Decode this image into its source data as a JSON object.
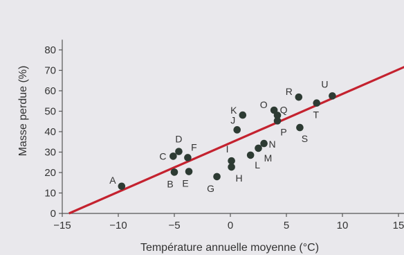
{
  "chart_data": {
    "type": "scatter",
    "xlabel": "Température annuelle moyenne (°C)",
    "ylabel": "Masse perdue (%)",
    "xlim": [
      -15,
      16
    ],
    "ylim": [
      0,
      85
    ],
    "x_ticks": [
      -15,
      -10,
      -5,
      0,
      5,
      10,
      15
    ],
    "x_tick_labels": [
      "−15",
      "−10",
      "−5",
      "0",
      "5",
      "10",
      "15"
    ],
    "y_ticks": [
      0,
      10,
      20,
      30,
      40,
      50,
      60,
      70,
      80
    ],
    "y_tick_labels": [
      "0",
      "10",
      "20",
      "30",
      "40",
      "50",
      "60",
      "70",
      "80"
    ],
    "grid": false,
    "points": [
      {
        "label": "A",
        "x": -9.7,
        "y": 13.3
      },
      {
        "label": "B",
        "x": -5.0,
        "y": 20.2
      },
      {
        "label": "C",
        "x": -5.1,
        "y": 28.0
      },
      {
        "label": "D",
        "x": -4.6,
        "y": 30.3
      },
      {
        "label": "E",
        "x": -3.7,
        "y": 20.5
      },
      {
        "label": "F",
        "x": -3.8,
        "y": 27.3
      },
      {
        "label": "G",
        "x": -1.2,
        "y": 18.0
      },
      {
        "label": "H",
        "x": 0.1,
        "y": 22.7
      },
      {
        "label": "I",
        "x": 0.1,
        "y": 25.7
      },
      {
        "label": "J",
        "x": 0.6,
        "y": 40.9
      },
      {
        "label": "K",
        "x": 1.1,
        "y": 48.1
      },
      {
        "label": "L",
        "x": 1.8,
        "y": 28.5
      },
      {
        "label": "M",
        "x": 2.5,
        "y": 31.9
      },
      {
        "label": "N",
        "x": 3.0,
        "y": 34.2
      },
      {
        "label": "O",
        "x": 3.9,
        "y": 50.5
      },
      {
        "label": "P",
        "x": 4.2,
        "y": 45.3
      },
      {
        "label": "Q",
        "x": 4.2,
        "y": 48.0
      },
      {
        "label": "R",
        "x": 6.1,
        "y": 56.9
      },
      {
        "label": "S",
        "x": 6.2,
        "y": 42.0
      },
      {
        "label": "T",
        "x": 7.7,
        "y": 54.0
      },
      {
        "label": "U",
        "x": 9.1,
        "y": 57.5
      }
    ],
    "trend_line": {
      "x": [
        -14.4,
        16.0
      ],
      "y": [
        0,
        72.8
      ]
    },
    "colors": {
      "trend_line": "#c4222f",
      "point": "#2d3b33",
      "axis": "#555555",
      "background": "#e9e8ec"
    }
  }
}
